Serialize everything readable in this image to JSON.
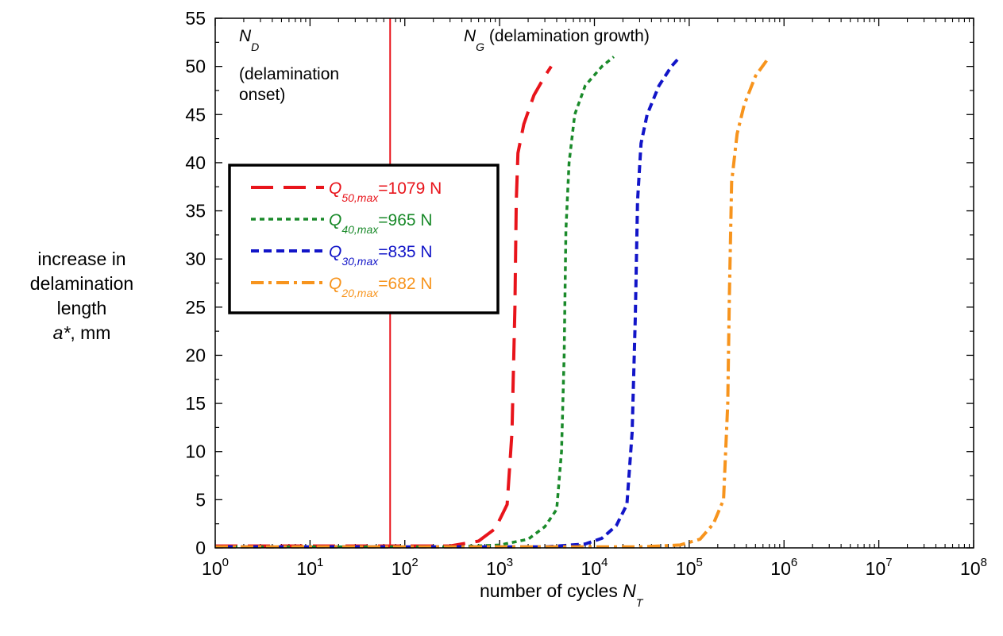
{
  "chart_data": {
    "type": "line",
    "xscale": "log",
    "xlim": [
      1,
      100000000
    ],
    "ylim": [
      0,
      55
    ],
    "x_ticks": [
      {
        "base": "10",
        "exp": "0",
        "value": 1
      },
      {
        "base": "10",
        "exp": "1",
        "value": 10
      },
      {
        "base": "10",
        "exp": "2",
        "value": 100
      },
      {
        "base": "10",
        "exp": "3",
        "value": 1000
      },
      {
        "base": "10",
        "exp": "4",
        "value": 10000
      },
      {
        "base": "10",
        "exp": "5",
        "value": 100000
      },
      {
        "base": "10",
        "exp": "6",
        "value": 1000000
      },
      {
        "base": "10",
        "exp": "7",
        "value": 10000000
      },
      {
        "base": "10",
        "exp": "8",
        "value": 100000000
      }
    ],
    "y_ticks": [
      "0",
      "5",
      "10",
      "15",
      "20",
      "25",
      "30",
      "35",
      "40",
      "45",
      "50",
      "55"
    ],
    "xlabel": {
      "text": "number of cycles ",
      "symbol": "N",
      "subscript": "T"
    },
    "ylabel": {
      "lines": [
        "increase in",
        "delamination",
        "length"
      ],
      "symbol": "a*",
      "unit": ", mm"
    },
    "vertical_line": {
      "x": 70,
      "color": "#e8141b"
    },
    "annotations": [
      {
        "symbol": "N",
        "subscript": "D",
        "lines": [
          "(delamination",
          "onset)"
        ]
      },
      {
        "symbol": "N",
        "subscript": "G",
        "text": " (delamination growth)"
      }
    ],
    "legend": {
      "position": "upper-left"
    },
    "series": [
      {
        "symbol": "Q",
        "subscript": "50,max",
        "value_text": "=1079 N",
        "color": "#e8141b",
        "dash": "28,13",
        "width": 4,
        "points": [
          [
            1,
            0.2
          ],
          [
            100,
            0.2
          ],
          [
            300,
            0.2
          ],
          [
            600,
            0.7
          ],
          [
            900,
            2
          ],
          [
            1200,
            4.5
          ],
          [
            1350,
            12
          ],
          [
            1450,
            25
          ],
          [
            1500,
            36
          ],
          [
            1560,
            41
          ],
          [
            1800,
            44
          ],
          [
            2300,
            47
          ],
          [
            3000,
            49
          ],
          [
            3500,
            50
          ]
        ]
      },
      {
        "symbol": "Q",
        "subscript": "40,max",
        "value_text": "=965 N",
        "color": "#1a8a2a",
        "dash": "6,5",
        "width": 3.5,
        "points": [
          [
            1,
            0.1
          ],
          [
            300,
            0.1
          ],
          [
            1000,
            0.3
          ],
          [
            2000,
            0.9
          ],
          [
            3000,
            2.2
          ],
          [
            4000,
            4
          ],
          [
            4500,
            10
          ],
          [
            4800,
            20
          ],
          [
            5000,
            33
          ],
          [
            5400,
            40
          ],
          [
            6200,
            45
          ],
          [
            8000,
            48
          ],
          [
            12000,
            50
          ],
          [
            16000,
            51
          ]
        ]
      },
      {
        "symbol": "Q",
        "subscript": "30,max",
        "value_text": "=835 N",
        "color": "#1215c8",
        "dash": "10,6",
        "width": 4,
        "points": [
          [
            1,
            0.1
          ],
          [
            3000,
            0.1
          ],
          [
            8000,
            0.4
          ],
          [
            12000,
            1
          ],
          [
            17000,
            2.3
          ],
          [
            22000,
            4.5
          ],
          [
            25000,
            12
          ],
          [
            27000,
            24
          ],
          [
            28500,
            36
          ],
          [
            31000,
            42
          ],
          [
            36000,
            45
          ],
          [
            48000,
            48
          ],
          [
            65000,
            50
          ],
          [
            80000,
            51
          ]
        ]
      },
      {
        "symbol": "Q",
        "subscript": "20,max",
        "value_text": "=682 N",
        "color": "#f7941d",
        "dash": "16,6,4,6",
        "width": 4,
        "points": [
          [
            1,
            0.1
          ],
          [
            30000,
            0.1
          ],
          [
            80000,
            0.3
          ],
          [
            130000,
            0.9
          ],
          [
            180000,
            2.5
          ],
          [
            230000,
            5
          ],
          [
            255000,
            15
          ],
          [
            265000,
            26
          ],
          [
            280000,
            38
          ],
          [
            320000,
            43
          ],
          [
            380000,
            46
          ],
          [
            500000,
            49
          ],
          [
            700000,
            51
          ]
        ]
      }
    ]
  }
}
